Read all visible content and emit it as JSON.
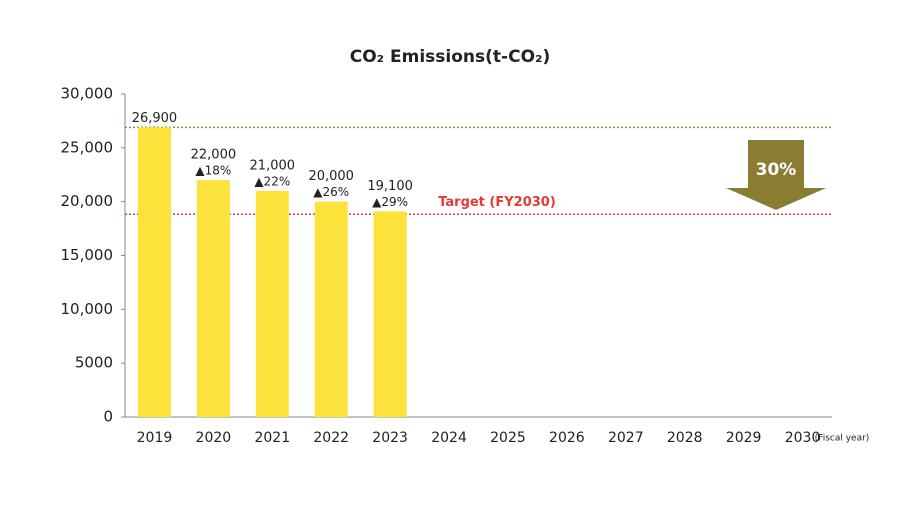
{
  "chart_data": {
    "type": "bar",
    "title": "CO₂ Emissions(t-CO₂)",
    "x_label": "(Fiscal year)",
    "categories": [
      "2019",
      "2020",
      "2021",
      "2022",
      "2023",
      "2024",
      "2025",
      "2026",
      "2027",
      "2028",
      "2029",
      "2030"
    ],
    "values": [
      26900,
      22000,
      21000,
      20000,
      19100,
      null,
      null,
      null,
      null,
      null,
      null,
      null
    ],
    "value_labels": [
      "26,900",
      "22,000",
      "21,000",
      "20,000",
      "19,100",
      null,
      null,
      null,
      null,
      null,
      null,
      null
    ],
    "change_labels": [
      null,
      "▲18%",
      "▲22%",
      "▲26%",
      "▲29%",
      null,
      null,
      null,
      null,
      null,
      null,
      null
    ],
    "color": "#fde23c",
    "ylim": [
      0,
      30000
    ],
    "yticks": [
      0,
      5000,
      {
        "value": 10000,
        "label": "10,000"
      },
      {
        "value": 15000,
        "label": "15,000"
      },
      {
        "value": 20000,
        "label": "20,000"
      },
      {
        "value": 25000,
        "label": "25,000"
      },
      {
        "value": 30000,
        "label": "30,000"
      }
    ],
    "reference_lines": [
      {
        "value": 26900,
        "color": "#9a8a3a"
      },
      {
        "value": 18830,
        "color": "#e53935",
        "label": "Target (FY2030)"
      }
    ],
    "arrow_label": "30%",
    "arrow_color": "#8a7d32"
  }
}
